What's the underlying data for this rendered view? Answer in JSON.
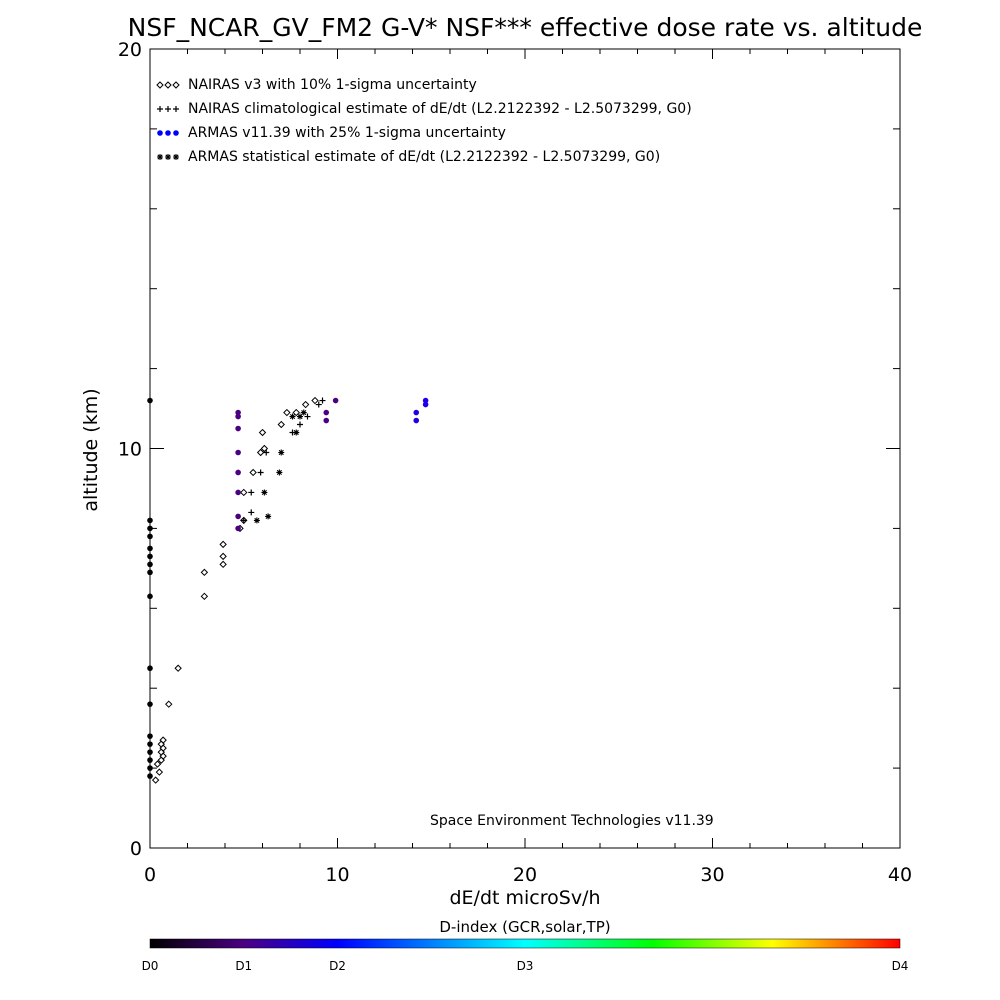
{
  "chart_data": {
    "type": "scatter",
    "title": "NSF_NCAR_GV_FM2 G-V* NSF*** effective dose rate vs. altitude",
    "xlabel": "dE/dt microSv/h",
    "ylabel": "altitude (km)",
    "xlim": [
      0,
      40
    ],
    "ylim": [
      0,
      20
    ],
    "x_ticks": [
      "0",
      "10",
      "20",
      "30",
      "40"
    ],
    "y_ticks": [
      "0",
      "10",
      "20"
    ],
    "x_tick_values": [
      0,
      10,
      20,
      30,
      40
    ],
    "y_tick_values": [
      0,
      10,
      20
    ],
    "grid": false,
    "legend_position": "top-left",
    "footnote": "Space Environment Technologies v11.39",
    "colorbar": {
      "title": "D-index (GCR,solar,TP)",
      "labels": [
        {
          "text": "D0",
          "value": 0
        },
        {
          "text": "D1",
          "value": 0.125
        },
        {
          "text": "D2",
          "value": 0.25
        },
        {
          "text": "D3",
          "value": 0.5
        },
        {
          "text": "D4",
          "value": 1.0
        }
      ],
      "colors": [
        "#000000",
        "#4b0082",
        "#0000ff",
        "#00ffff",
        "#00ff00",
        "#ffff00",
        "#ff0000"
      ]
    },
    "series": [
      {
        "name": "NAIRAS v3 with 10% 1-sigma uncertainty",
        "marker": "diamond",
        "color": "#000000",
        "points": [
          [
            0.3,
            1.7
          ],
          [
            0.5,
            1.9
          ],
          [
            0.4,
            2.1
          ],
          [
            0.6,
            2.2
          ],
          [
            0.7,
            2.3
          ],
          [
            0.6,
            2.4
          ],
          [
            0.7,
            2.5
          ],
          [
            0.6,
            2.6
          ],
          [
            0.7,
            2.7
          ],
          [
            1.0,
            3.6
          ],
          [
            1.5,
            4.5
          ],
          [
            2.9,
            6.3
          ],
          [
            2.9,
            6.9
          ],
          [
            3.9,
            7.1
          ],
          [
            3.9,
            7.3
          ],
          [
            3.9,
            7.6
          ],
          [
            4.8,
            8.0
          ],
          [
            5.0,
            8.2
          ],
          [
            5.0,
            8.9
          ],
          [
            5.5,
            9.4
          ],
          [
            5.9,
            9.9
          ],
          [
            6.1,
            10.0
          ],
          [
            6.0,
            10.4
          ],
          [
            7.0,
            10.6
          ],
          [
            7.3,
            10.9
          ],
          [
            7.8,
            10.9
          ],
          [
            8.3,
            11.1
          ],
          [
            8.8,
            11.2
          ]
        ]
      },
      {
        "name": "NAIRAS climatological estimate of dE/dt (L2.2122392 - L2.5073299, G0)",
        "marker": "plus",
        "color": "#000000",
        "points": [
          [
            5.0,
            8.2
          ],
          [
            5.4,
            8.4
          ],
          [
            5.4,
            8.9
          ],
          [
            5.9,
            9.4
          ],
          [
            6.2,
            9.9
          ],
          [
            7.6,
            10.4
          ],
          [
            8.0,
            10.6
          ],
          [
            8.4,
            10.8
          ],
          [
            9.0,
            11.1
          ],
          [
            9.2,
            11.2
          ]
        ]
      },
      {
        "name": "ARMAS v11.39 with 25% 1-sigma uncertainty",
        "marker": "filled-circle",
        "color": "#0000ff",
        "points": [
          [
            0.0,
            1.8
          ],
          [
            0.0,
            2.0
          ],
          [
            0.0,
            2.2
          ],
          [
            0.0,
            2.4
          ],
          [
            0.0,
            2.6
          ],
          [
            0.0,
            2.8
          ],
          [
            0.0,
            3.6
          ],
          [
            0.0,
            4.5
          ],
          [
            0.0,
            6.3
          ],
          [
            0.0,
            6.9
          ],
          [
            0.0,
            7.1
          ],
          [
            0.0,
            7.3
          ],
          [
            0.0,
            7.5
          ],
          [
            0.0,
            7.8
          ],
          [
            0.0,
            8.0
          ],
          [
            0.0,
            8.2
          ],
          [
            0.0,
            11.2
          ],
          [
            4.7,
            8.0
          ],
          [
            4.7,
            8.3
          ],
          [
            4.7,
            8.9
          ],
          [
            4.7,
            9.4
          ],
          [
            4.7,
            9.9
          ],
          [
            4.7,
            10.5
          ],
          [
            4.7,
            10.8
          ],
          [
            4.7,
            10.9
          ],
          [
            9.4,
            10.7
          ],
          [
            9.4,
            10.9
          ],
          [
            9.9,
            11.2
          ],
          [
            14.2,
            10.7
          ],
          [
            14.2,
            10.9
          ],
          [
            14.7,
            11.1
          ],
          [
            14.7,
            11.2
          ]
        ]
      },
      {
        "name": "ARMAS statistical estimate of dE/dt (L2.2122392 - L2.5073299, G0)",
        "marker": "asterisk",
        "color": "#000000",
        "points": [
          [
            5.7,
            8.2
          ],
          [
            6.3,
            8.3
          ],
          [
            6.1,
            8.9
          ],
          [
            6.9,
            9.4
          ],
          [
            7.0,
            9.9
          ],
          [
            7.8,
            10.4
          ],
          [
            8.0,
            10.8
          ],
          [
            8.2,
            10.9
          ],
          [
            7.6,
            10.8
          ]
        ]
      }
    ]
  }
}
